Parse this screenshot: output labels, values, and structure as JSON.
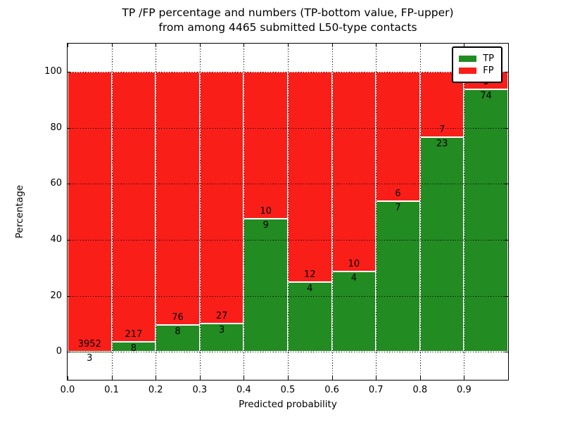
{
  "title": {
    "line1": "TP /FP percentage and numbers (TP-bottom value, FP-upper)",
    "line2": "from among 4465 submitted L50-type contacts"
  },
  "chart_data": {
    "type": "bar",
    "stacked": true,
    "normalization": "percent of bin total; bars stack to 100",
    "title": "TP /FP percentage and numbers (TP-bottom value, FP-upper)\nfrom among 4465 submitted L50-type contacts",
    "xlabel": "Predicted probability",
    "ylabel": "Percentage",
    "xlim": [
      0.0,
      1.0
    ],
    "ylim": [
      -10,
      110
    ],
    "xticks": [
      "0.0",
      "0.1",
      "0.2",
      "0.3",
      "0.4",
      "0.5",
      "0.6",
      "0.7",
      "0.8",
      "0.9"
    ],
    "yticks": [
      0,
      20,
      40,
      60,
      80,
      100
    ],
    "bin_edges": [
      0.0,
      0.1,
      0.2,
      0.3,
      0.4,
      0.5,
      0.6,
      0.7,
      0.8,
      0.9,
      1.0
    ],
    "series": [
      {
        "name": "TP",
        "color": "#228B22",
        "values": [
          3,
          8,
          8,
          3,
          9,
          4,
          4,
          7,
          23,
          74
        ]
      },
      {
        "name": "FP",
        "color": "#fa1e19",
        "values": [
          3952,
          217,
          76,
          27,
          10,
          12,
          10,
          6,
          7,
          5
        ]
      }
    ],
    "total_contacts": 4465,
    "legend": {
      "position": "upper right",
      "entries": [
        "TP",
        "FP"
      ]
    },
    "grid": {
      "style": "dotted",
      "color": "#000000"
    }
  },
  "colors": {
    "tp": "#228B22",
    "fp": "#fa1e19",
    "background": "#ffffff",
    "text": "#000000"
  }
}
